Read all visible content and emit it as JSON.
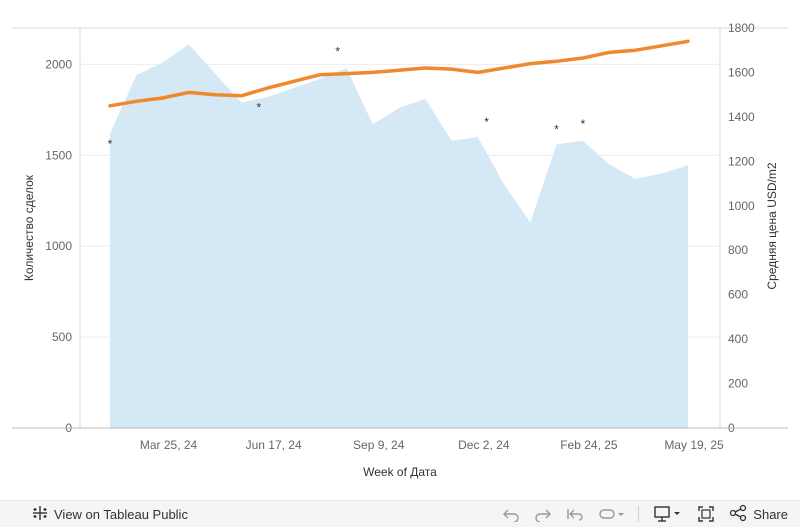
{
  "chart_data": {
    "type": "area+line",
    "xlabel": "Week of Дата",
    "x_tick_labels": [
      "Mar 25, 24",
      "Jun 17, 24",
      "Sep 9, 24",
      "Dec 2, 24",
      "Feb 24, 25",
      "May 19, 25"
    ],
    "y_left_label": "Количество сделок",
    "y_left_ticks": [
      "0",
      "500",
      "1000",
      "1500",
      "2000"
    ],
    "y_left_lim": [
      0,
      2200
    ],
    "y_right_label": "Средняя цена USD/m2",
    "y_right_ticks": [
      "0",
      "200",
      "400",
      "600",
      "800",
      "1000",
      "1200",
      "1400",
      "1600",
      "1800"
    ],
    "y_right_lim": [
      0,
      1800
    ],
    "x": [
      "2024-02-12",
      "2024-03-04",
      "2024-03-25",
      "2024-04-15",
      "2024-05-06",
      "2024-05-27",
      "2024-06-17",
      "2024-07-08",
      "2024-07-29",
      "2024-08-19",
      "2024-09-09",
      "2024-09-30",
      "2024-10-21",
      "2024-11-11",
      "2024-12-02",
      "2024-12-23",
      "2025-01-13",
      "2025-02-03",
      "2025-02-24",
      "2025-03-17",
      "2025-04-07",
      "2025-04-28",
      "2025-05-19"
    ],
    "series": [
      {
        "axis": "left",
        "style": "area",
        "color": "#d4e8f5",
        "values": [
          1620,
          1940,
          2010,
          2110,
          1950,
          1790,
          1820,
          1870,
          1920,
          1980,
          1670,
          1760,
          1810,
          1580,
          1600,
          1340,
          1130,
          1560,
          1580,
          1450,
          1370,
          1400,
          1445
        ]
      },
      {
        "axis": "right",
        "style": "line",
        "color": "#f0892e",
        "values": [
          1450,
          1470,
          1485,
          1510,
          1500,
          1495,
          1530,
          1560,
          1590,
          1595,
          1600,
          1610,
          1620,
          1615,
          1600,
          1620,
          1640,
          1650,
          1665,
          1690,
          1700,
          1720,
          1740
        ]
      }
    ],
    "annotations": [
      {
        "text": "*",
        "x": "2024-02-12",
        "y": 1540
      },
      {
        "text": "*",
        "x": "2024-06-10",
        "y": 1740
      },
      {
        "text": "*",
        "x": "2024-08-12",
        "y": 2050
      },
      {
        "text": "*",
        "x": "2024-12-09",
        "y": 1660
      },
      {
        "text": "*",
        "x": "2025-02-03",
        "y": 1620
      },
      {
        "text": "*",
        "x": "2025-02-24",
        "y": 1650
      }
    ],
    "grid": true
  },
  "toolbar": {
    "view_on_label": "View on Tableau Public",
    "share_label": "Share",
    "icons": [
      "tableau-logo-icon",
      "undo-icon",
      "redo-icon",
      "revert-icon",
      "refresh-icon",
      "download-icon",
      "fullscreen-icon",
      "share-icon"
    ]
  }
}
